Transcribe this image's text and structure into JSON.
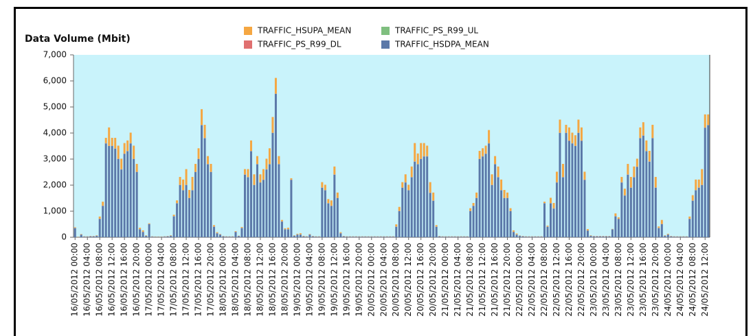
{
  "chart_data": {
    "type": "stacked_bar",
    "y_axis_title": "Data Volume (Mbit)",
    "ylim": [
      0,
      7000
    ],
    "yticks": [
      0,
      {
        "value": 1000,
        "label": "1,000"
      },
      {
        "value": 2000,
        "label": "2,000"
      },
      {
        "value": 3000,
        "label": "3,000"
      },
      {
        "value": 4000,
        "label": "4,000"
      },
      {
        "value": 5000,
        "label": "5,000"
      },
      {
        "value": 6000,
        "label": "6,000"
      },
      {
        "value": 7000,
        "label": "7,000"
      }
    ],
    "background": "#c9f3fb",
    "categories": [
      "16/05/2012 00:00",
      null,
      null,
      null,
      "16/05/2012 04:00",
      null,
      null,
      null,
      "16/05/2012 08:00",
      null,
      null,
      null,
      "16/05/2012 12:00",
      null,
      null,
      null,
      "16/05/2012 16:00",
      null,
      null,
      null,
      "16/05/2012 20:00",
      null,
      null,
      null,
      "17/05/2012 00:00",
      null,
      null,
      null,
      "17/05/2012 04:00",
      null,
      null,
      null,
      "17/05/2012 08:00",
      null,
      null,
      null,
      "17/05/2012 12:00",
      null,
      null,
      null,
      "17/05/2012 16:00",
      null,
      null,
      null,
      "17/05/2012 20:00",
      null,
      null,
      null,
      "18/05/2012 00:00",
      null,
      null,
      null,
      "18/05/2012 04:00",
      null,
      null,
      null,
      "18/05/2012 08:00",
      null,
      null,
      null,
      "18/05/2012 12:00",
      null,
      null,
      null,
      "18/05/2012 16:00",
      null,
      null,
      null,
      "18/05/2012 20:00",
      null,
      null,
      null,
      "19/05/2012 00:00",
      null,
      null,
      null,
      "19/05/2012 04:00",
      null,
      null,
      null,
      "19/05/2012 08:00",
      null,
      null,
      null,
      "19/05/2012 12:00",
      null,
      null,
      null,
      "19/05/2012 16:00",
      null,
      null,
      null,
      "19/05/2012 20:00",
      null,
      null,
      null,
      "20/05/2012 00:00",
      null,
      null,
      null,
      "20/05/2012 04:00",
      null,
      null,
      null,
      "20/05/2012 08:00",
      null,
      null,
      null,
      "20/05/2012 12:00",
      null,
      null,
      null,
      "20/05/2012 16:00",
      null,
      null,
      null,
      "20/05/2012 20:00",
      null,
      null,
      null,
      "21/05/2012 00:00",
      null,
      null,
      null,
      "21/05/2012 04:00",
      null,
      null,
      null,
      "21/05/2012 08:00",
      null,
      null,
      null,
      "21/05/2012 12:00",
      null,
      null,
      null,
      "21/05/2012 16:00",
      null,
      null,
      null,
      "21/05/2012 20:00",
      null,
      null,
      null,
      "22/05/2012 00:00",
      null,
      null,
      null,
      "22/05/2012 04:00",
      null,
      null,
      null,
      "22/05/2012 08:00",
      null,
      null,
      null,
      "22/05/2012 12:00",
      null,
      null,
      null,
      "22/05/2012 16:00",
      null,
      null,
      null,
      "22/05/2012 20:00",
      null,
      null,
      null,
      "23/05/2012 00:00",
      null,
      null,
      null,
      "23/05/2012 04:00",
      null,
      null,
      null,
      "23/05/2012 08:00",
      null,
      null,
      null,
      "23/05/2012 12:00",
      null,
      null,
      null,
      "23/05/2012 16:00",
      null,
      null,
      null,
      "23/05/2012 20:00",
      null,
      null,
      null,
      "24/05/2012 00:00",
      null,
      null,
      null,
      "24/05/2012 04:00",
      null,
      null,
      null,
      "24/05/2012 08:00",
      null,
      null,
      null,
      "24/05/2012 12:00",
      null
    ],
    "series": [
      {
        "name": "TRAFFIC_HSUPA_MEAN",
        "color": "#f5a742",
        "values": [
          20,
          5,
          10,
          5,
          5,
          5,
          5,
          10,
          80,
          150,
          200,
          700,
          300,
          400,
          500,
          400,
          400,
          400,
          400,
          500,
          300,
          50,
          50,
          10,
          20,
          5,
          5,
          5,
          5,
          5,
          5,
          10,
          50,
          100,
          300,
          400,
          600,
          300,
          500,
          300,
          400,
          600,
          500,
          300,
          300,
          50,
          30,
          10,
          5,
          5,
          5,
          5,
          20,
          5,
          30,
          200,
          300,
          400,
          400,
          300,
          300,
          400,
          400,
          600,
          600,
          600,
          300,
          50,
          30,
          50,
          50,
          10,
          20,
          40,
          10,
          5,
          10,
          5,
          5,
          5,
          200,
          200,
          150,
          200,
          300,
          200,
          30,
          5,
          5,
          5,
          5,
          5,
          5,
          5,
          5,
          5,
          5,
          5,
          5,
          5,
          5,
          5,
          5,
          5,
          80,
          150,
          200,
          300,
          200,
          400,
          700,
          400,
          600,
          500,
          400,
          400,
          300,
          50,
          5,
          5,
          5,
          5,
          5,
          5,
          5,
          5,
          5,
          5,
          100,
          100,
          200,
          300,
          300,
          300,
          500,
          400,
          300,
          400,
          400,
          300,
          200,
          100,
          50,
          30,
          5,
          5,
          5,
          5,
          5,
          5,
          5,
          5,
          50,
          30,
          200,
          200,
          400,
          500,
          500,
          300,
          500,
          400,
          400,
          500,
          500,
          300,
          50,
          10,
          5,
          5,
          5,
          5,
          5,
          5,
          5,
          100,
          50,
          200,
          250,
          400,
          400,
          400,
          300,
          400,
          500,
          400,
          400,
          500,
          400,
          50,
          150,
          10,
          20,
          5,
          5,
          5,
          5,
          5,
          5,
          80,
          200,
          400,
          300,
          600,
          500,
          400
        ]
      },
      {
        "name": "TRAFFIC_PS_R99_UL",
        "color": "#7fbf7f",
        "values": [
          5,
          5,
          5,
          5,
          5,
          5,
          5,
          5,
          5,
          5,
          5,
          5,
          5,
          5,
          5,
          5,
          5,
          5,
          5,
          5,
          5,
          5,
          5,
          5,
          5,
          5,
          5,
          5,
          5,
          5,
          5,
          5,
          5,
          5,
          5,
          5,
          5,
          5,
          5,
          5,
          5,
          5,
          5,
          5,
          5,
          5,
          5,
          5,
          5,
          5,
          5,
          5,
          5,
          5,
          5,
          5,
          5,
          5,
          5,
          5,
          5,
          5,
          5,
          5,
          5,
          5,
          5,
          5,
          5,
          5,
          5,
          5,
          5,
          5,
          5,
          5,
          5,
          5,
          5,
          5,
          5,
          5,
          5,
          5,
          5,
          5,
          5,
          5,
          5,
          5,
          5,
          5,
          5,
          5,
          5,
          5,
          5,
          5,
          5,
          5,
          5,
          5,
          5,
          5,
          5,
          5,
          5,
          5,
          5,
          5,
          5,
          5,
          5,
          5,
          5,
          5,
          5,
          5,
          5,
          5,
          5,
          5,
          5,
          5,
          5,
          5,
          5,
          5,
          5,
          5,
          5,
          5,
          5,
          5,
          5,
          5,
          5,
          5,
          5,
          5,
          5,
          5,
          5,
          5,
          5,
          5,
          5,
          5,
          5,
          5,
          5,
          5,
          5,
          5,
          5,
          5,
          5,
          5,
          5,
          5,
          5,
          5,
          5,
          5,
          5,
          5,
          5,
          5,
          5,
          5,
          5,
          5,
          5,
          5,
          5,
          5,
          5,
          5,
          5,
          5,
          5,
          5,
          5,
          5,
          5,
          5,
          5,
          5,
          5,
          5,
          5,
          5,
          5,
          5,
          5,
          5,
          5,
          5,
          5,
          5,
          5,
          5,
          5,
          5,
          5,
          5
        ]
      },
      {
        "name": "TRAFFIC_PS_R99_DL",
        "color": "#e07070",
        "values": [
          10,
          10,
          10,
          10,
          10,
          10,
          10,
          10,
          10,
          10,
          10,
          10,
          10,
          10,
          10,
          10,
          10,
          10,
          10,
          10,
          10,
          10,
          10,
          10,
          10,
          10,
          10,
          10,
          10,
          10,
          10,
          10,
          10,
          10,
          10,
          10,
          10,
          10,
          10,
          10,
          10,
          10,
          10,
          10,
          10,
          10,
          10,
          10,
          10,
          10,
          10,
          10,
          10,
          10,
          10,
          10,
          10,
          10,
          10,
          10,
          10,
          10,
          10,
          10,
          10,
          10,
          10,
          10,
          10,
          10,
          10,
          10,
          10,
          10,
          10,
          10,
          10,
          10,
          10,
          10,
          10,
          10,
          10,
          10,
          10,
          10,
          10,
          10,
          10,
          10,
          10,
          10,
          10,
          10,
          10,
          10,
          10,
          10,
          10,
          10,
          10,
          10,
          10,
          10,
          10,
          10,
          10,
          10,
          10,
          10,
          10,
          10,
          10,
          10,
          10,
          10,
          10,
          10,
          10,
          10,
          10,
          10,
          10,
          10,
          10,
          10,
          10,
          10,
          10,
          10,
          10,
          10,
          10,
          10,
          10,
          10,
          10,
          10,
          10,
          10,
          10,
          10,
          10,
          10,
          10,
          10,
          10,
          10,
          10,
          10,
          10,
          10,
          10,
          10,
          10,
          10,
          10,
          10,
          10,
          10,
          10,
          10,
          10,
          10,
          10,
          10,
          10,
          10,
          10,
          10,
          10,
          10,
          10,
          10,
          10,
          10,
          10,
          10,
          10,
          10,
          10,
          10,
          10,
          10,
          10,
          10,
          10,
          10,
          10,
          10,
          10,
          10,
          10,
          10,
          10,
          10,
          10,
          10,
          10,
          10,
          10,
          10,
          10,
          10,
          10,
          10
        ]
      },
      {
        "name": "TRAFFIC_HSDPA_MEAN",
        "color": "#5b78a8",
        "values": [
          350,
          0,
          100,
          20,
          20,
          30,
          30,
          50,
          700,
          1200,
          3600,
          3500,
          3500,
          3400,
          3000,
          2600,
          3200,
          3300,
          3600,
          3000,
          2500,
          300,
          200,
          50,
          500,
          20,
          10,
          10,
          10,
          20,
          30,
          50,
          800,
          1300,
          2000,
          1800,
          2000,
          1500,
          1800,
          2500,
          3000,
          4300,
          3800,
          2800,
          2500,
          400,
          150,
          100,
          30,
          20,
          20,
          20,
          200,
          40,
          350,
          2400,
          2300,
          3300,
          2000,
          2800,
          2100,
          2200,
          2600,
          2800,
          4000,
          5500,
          2800,
          600,
          300,
          300,
          2200,
          50,
          100,
          100,
          30,
          20,
          100,
          30,
          20,
          20,
          1900,
          1800,
          1300,
          1200,
          2400,
          1500,
          150,
          30,
          20,
          20,
          20,
          20,
          20,
          20,
          20,
          20,
          20,
          20,
          20,
          20,
          20,
          20,
          20,
          20,
          400,
          1000,
          1900,
          2100,
          1800,
          2300,
          2900,
          2800,
          3000,
          3100,
          3100,
          1700,
          1400,
          400,
          30,
          20,
          20,
          20,
          20,
          20,
          20,
          20,
          20,
          20,
          1000,
          1200,
          1500,
          3000,
          3100,
          3200,
          3600,
          2000,
          2800,
          2300,
          1800,
          1500,
          1500,
          1000,
          200,
          100,
          50,
          30,
          20,
          20,
          20,
          20,
          20,
          20,
          1300,
          400,
          1300,
          1100,
          2100,
          4000,
          2300,
          4000,
          3700,
          3600,
          3500,
          4000,
          3700,
          2200,
          250,
          50,
          30,
          30,
          30,
          30,
          30,
          30,
          300,
          800,
          700,
          2100,
          1600,
          2400,
          1900,
          2300,
          2700,
          3800,
          3900,
          3300,
          2900,
          3800,
          1900,
          350,
          500,
          50,
          100,
          30,
          20,
          20,
          20,
          20,
          20,
          700,
          1400,
          1800,
          1900,
          2000,
          4200,
          4300
        ]
      }
    ]
  }
}
